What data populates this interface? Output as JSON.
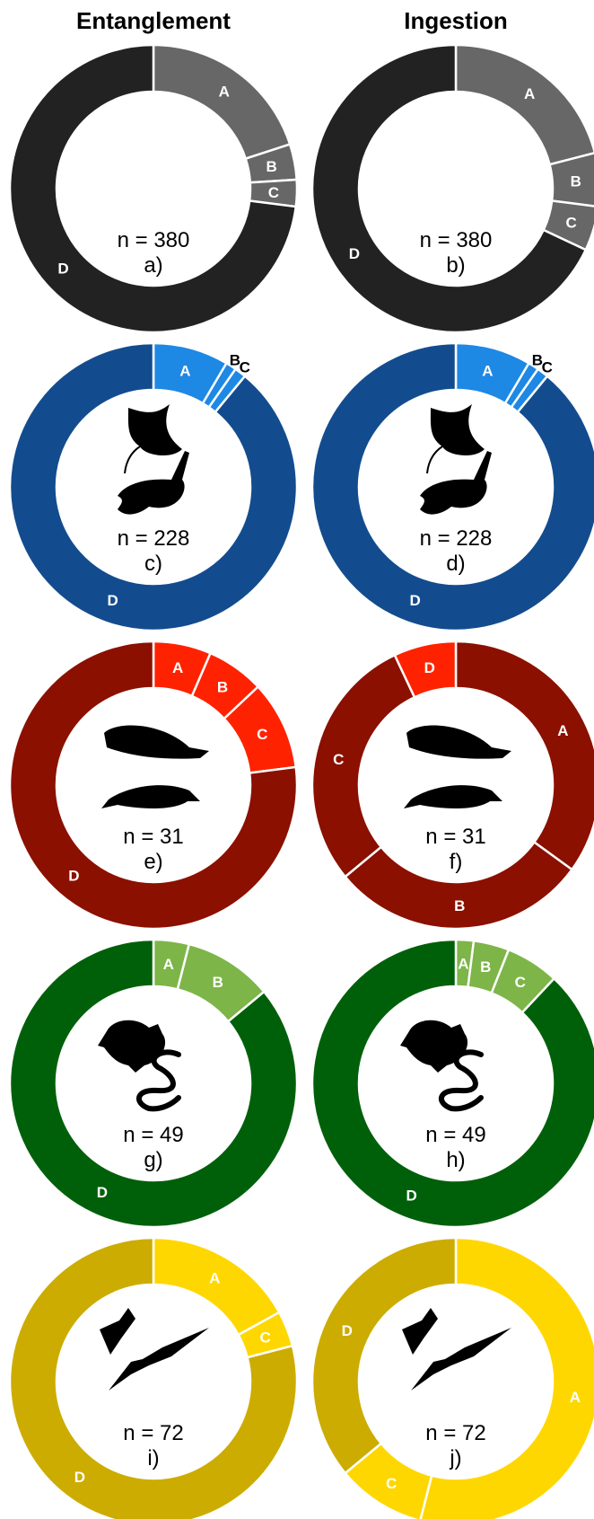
{
  "column_titles": [
    "Entanglement",
    "Ingestion"
  ],
  "chart_data": [
    {
      "type": "pie",
      "id": "a",
      "column": "Entanglement",
      "n_label": "n = 380",
      "panel": "a)",
      "group": "all",
      "colors": {
        "main": "#222222",
        "minor": "#676767"
      },
      "labels": [
        "A",
        "B",
        "C",
        "D"
      ],
      "values": [
        20,
        4,
        3,
        73
      ],
      "label_colors": [
        "#fff",
        "#fff",
        "#fff",
        "#fff"
      ]
    },
    {
      "type": "pie",
      "id": "b",
      "column": "Ingestion",
      "n_label": "n = 380",
      "panel": "b)",
      "group": "all",
      "colors": {
        "main": "#222222",
        "minor": "#676767"
      },
      "labels": [
        "A",
        "B",
        "C",
        "D"
      ],
      "values": [
        21,
        6,
        5,
        68
      ],
      "label_colors": [
        "#fff",
        "#fff",
        "#fff",
        "#fff"
      ]
    },
    {
      "type": "pie",
      "id": "c",
      "column": "Entanglement",
      "n_label": "n = 228",
      "panel": "c)",
      "group": "fish",
      "colors": {
        "main": "#134C8E",
        "minor": "#1E88E5"
      },
      "labels": [
        "A",
        "B",
        "C",
        "D"
      ],
      "values": [
        8.5,
        1.2,
        1.3,
        89
      ],
      "label_colors": [
        "#fff",
        "#000",
        "#000",
        "#fff"
      ]
    },
    {
      "type": "pie",
      "id": "d",
      "column": "Ingestion",
      "n_label": "n = 228",
      "panel": "d)",
      "group": "fish",
      "colors": {
        "main": "#134C8E",
        "minor": "#1E88E5"
      },
      "labels": [
        "A",
        "B",
        "C",
        "D"
      ],
      "values": [
        8.5,
        1.2,
        1.3,
        89
      ],
      "label_colors": [
        "#fff",
        "#000",
        "#000",
        "#fff"
      ]
    },
    {
      "type": "pie",
      "id": "e",
      "column": "Entanglement",
      "n_label": "n = 31",
      "panel": "e)",
      "group": "mammals",
      "colors": {
        "main": "#8B1000",
        "minor": "#FF2200"
      },
      "labels": [
        "A",
        "B",
        "C",
        "D"
      ],
      "values": [
        6.5,
        6.5,
        10,
        77
      ],
      "label_colors": [
        "#fff",
        "#fff",
        "#fff",
        "#fff"
      ]
    },
    {
      "type": "pie",
      "id": "f",
      "column": "Ingestion",
      "n_label": "n = 31",
      "panel": "f)",
      "group": "mammals",
      "colors": {
        "main": "#FF2200",
        "minor": "#8B1000"
      },
      "labels": [
        "A",
        "B",
        "C",
        "D"
      ],
      "values": [
        35,
        29,
        29,
        7
      ],
      "label_colors": [
        "#fff",
        "#fff",
        "#fff",
        "#fff"
      ]
    },
    {
      "type": "pie",
      "id": "g",
      "column": "Entanglement",
      "n_label": "n = 49",
      "panel": "g)",
      "group": "reptiles",
      "colors": {
        "main": "#00600A",
        "minor": "#7DB548"
      },
      "labels": [
        "A",
        "B",
        "D"
      ],
      "values": [
        4,
        10,
        86
      ],
      "label_colors": [
        "#fff",
        "#fff",
        "#fff"
      ]
    },
    {
      "type": "pie",
      "id": "h",
      "column": "Ingestion",
      "n_label": "n = 49",
      "panel": "h)",
      "group": "reptiles",
      "colors": {
        "main": "#00600A",
        "minor": "#7DB548"
      },
      "labels": [
        "A",
        "B",
        "C",
        "D"
      ],
      "values": [
        2,
        4,
        6,
        88
      ],
      "label_colors": [
        "#fff",
        "#fff",
        "#fff",
        "#fff"
      ]
    },
    {
      "type": "pie",
      "id": "i",
      "column": "Entanglement",
      "n_label": "n = 72",
      "panel": "i)",
      "group": "birds",
      "colors": {
        "main": "#CCAC00",
        "minor": "#FFD700"
      },
      "labels": [
        "A",
        "C",
        "D"
      ],
      "values": [
        17,
        4,
        79
      ],
      "label_colors": [
        "#fff",
        "#fff",
        "#fff"
      ]
    },
    {
      "type": "pie",
      "id": "j",
      "column": "Ingestion",
      "n_label": "n = 72",
      "panel": "j)",
      "group": "birds",
      "colors": {
        "main": "#FFD700",
        "minor": "#CCAC00"
      },
      "labels": [
        "A",
        "C",
        "D"
      ],
      "values": [
        54,
        10,
        36
      ],
      "label_colors": [
        "#fff",
        "#fff",
        "#fff"
      ],
      "main_labels": [
        "A",
        "C"
      ]
    }
  ]
}
